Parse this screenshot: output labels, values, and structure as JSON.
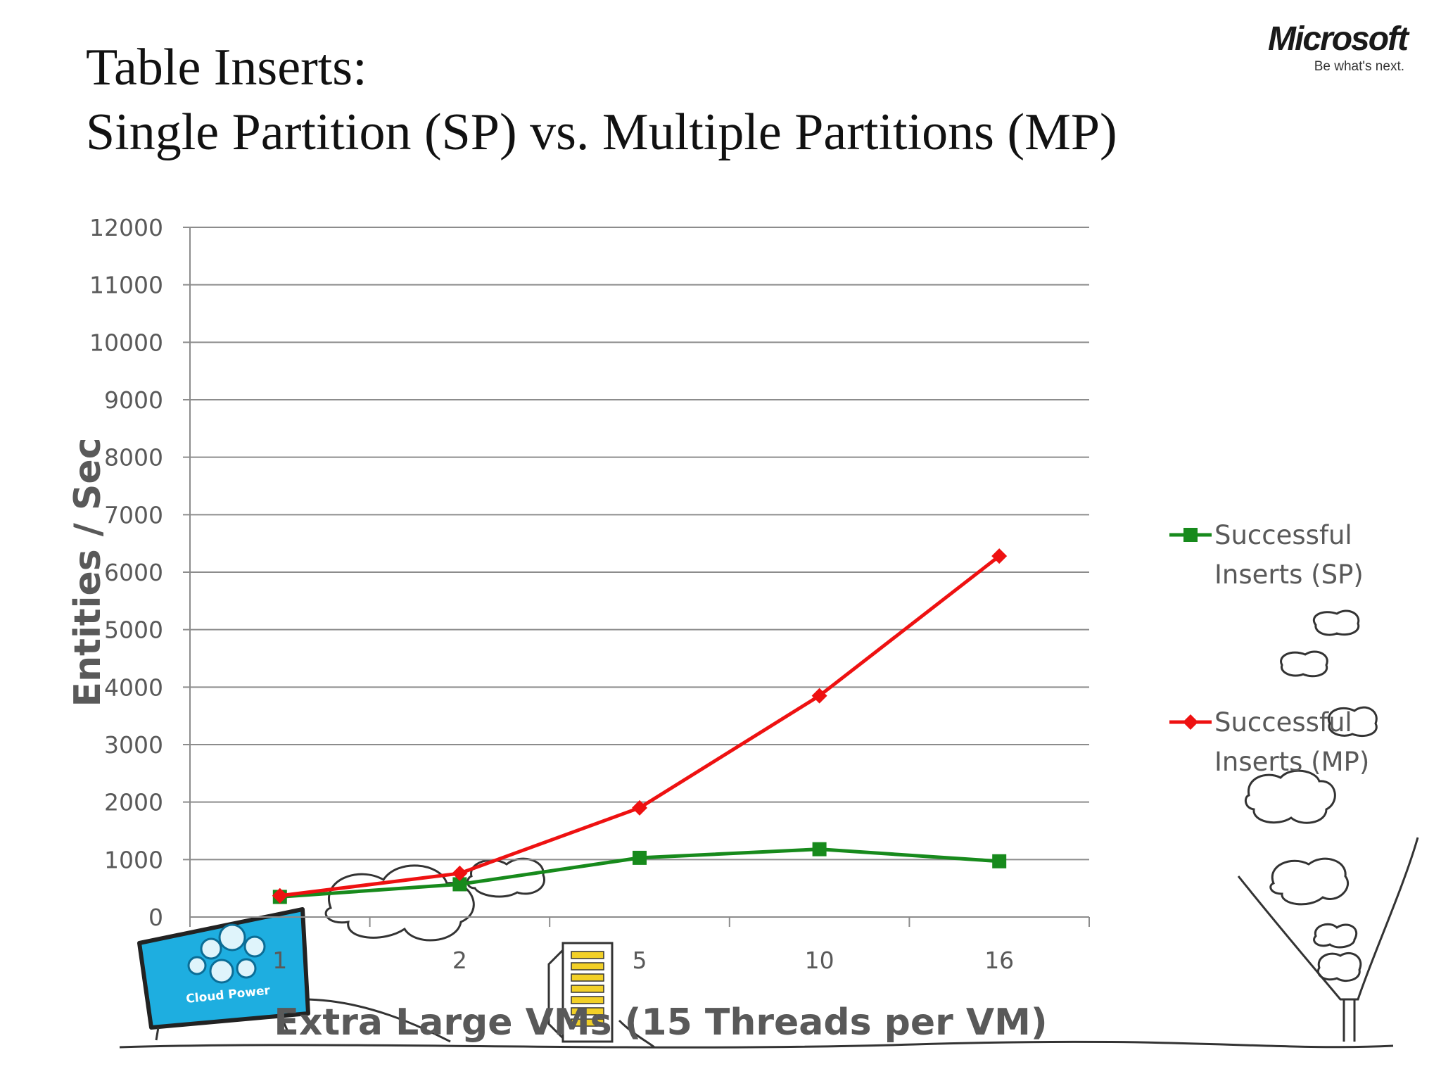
{
  "title": {
    "line1": "Table Inserts:",
    "line2": "Single Partition (SP) vs. Multiple Partitions (MP)"
  },
  "logo": {
    "wordmark": "Microsoft",
    "tagline": "Be what's next."
  },
  "illustration": {
    "monitor_label": "Cloud Power"
  },
  "chart_data": {
    "type": "line",
    "categories": [
      "1",
      "2",
      "5",
      "10",
      "16"
    ],
    "series": [
      {
        "name_lines": [
          "Successful",
          "Inserts (SP)"
        ],
        "values": [
          350,
          570,
          1030,
          1180,
          970
        ],
        "color": "#178a1c",
        "marker": "square"
      },
      {
        "name_lines": [
          "Successful",
          "Inserts (MP)"
        ],
        "values": [
          370,
          760,
          1900,
          3850,
          6280
        ],
        "color": "#ee1111",
        "marker": "diamond"
      }
    ],
    "yticks": [
      "0",
      "1000",
      "2000",
      "3000",
      "4000",
      "5000",
      "6000",
      "7000",
      "8000",
      "9000",
      "10000",
      "11000",
      "12000"
    ],
    "ylim": [
      0,
      12000
    ],
    "xlabel": "Extra Large VMs (15 Threads per VM)",
    "ylabel": "Entities / Sec",
    "grid": true,
    "legend": "right"
  }
}
